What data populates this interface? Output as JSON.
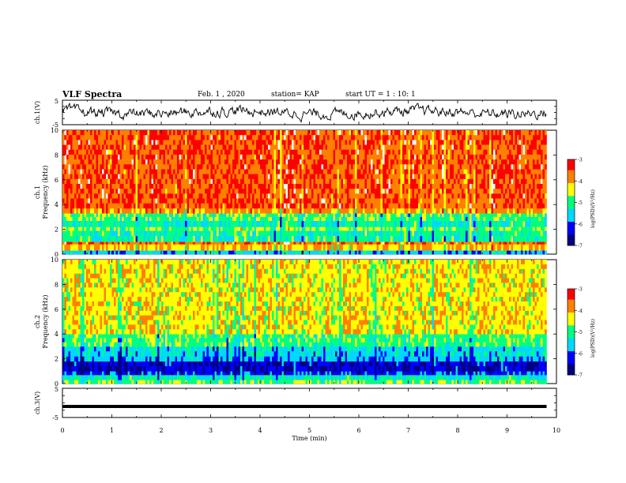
{
  "header": {
    "title": "VLF Spectra",
    "date": "Feb. 1 , 2020",
    "station": "station= KAP",
    "start": "start UT = 1 : 10: 1"
  },
  "colors": {
    "background": "#ffffff",
    "axes": "#000000",
    "trace": "#000000",
    "colormap": [
      "#000080",
      "#0000ff",
      "#00d8ff",
      "#00ff80",
      "#ffff00",
      "#ff8000",
      "#ff0000",
      "#ffffff"
    ]
  },
  "chart_data": [
    {
      "type": "line",
      "panel": "ch.1 waveform",
      "ylabel": "ch.1(V)",
      "ylim": [
        -5,
        5
      ],
      "yticks": [
        "5",
        "-5"
      ],
      "description_series": "noisy voltage trace roughly between -2 and +2 V",
      "xlim": [
        0,
        10
      ]
    },
    {
      "type": "heatmap",
      "panel": "ch.1 spectrogram",
      "ylabel": "ch.1 Frequency (kHz)",
      "ylim": [
        0,
        10
      ],
      "yticks": [
        "0",
        "2",
        "4",
        "6",
        "8",
        "10"
      ],
      "xlim": [
        0,
        9.8
      ],
      "bands": [
        {
          "from": 0,
          "to": 0.3,
          "level": -5.5
        },
        {
          "from": 0.3,
          "to": 0.8,
          "level": -4.0
        },
        {
          "from": 0.8,
          "to": 1.0,
          "level": -3.5
        },
        {
          "from": 1.0,
          "to": 1.9,
          "level": -5.0
        },
        {
          "from": 1.9,
          "to": 2.2,
          "level": -4.6
        },
        {
          "from": 2.2,
          "to": 2.7,
          "level": -5.1
        },
        {
          "from": 2.7,
          "to": 3.3,
          "level": -4.8
        },
        {
          "from": 3.3,
          "to": 3.7,
          "level": -3.8
        },
        {
          "from": 3.7,
          "to": 10.0,
          "level": -3.4
        }
      ],
      "colorbar": {
        "label": "log(PSD)(V²/Hz)",
        "min": -7,
        "max": -3,
        "ticks": [
          "-3",
          "-4",
          "-5",
          "-6",
          "-7"
        ]
      }
    },
    {
      "type": "heatmap",
      "panel": "ch.2 spectrogram",
      "ylabel": "ch.2 Frequency (kHz)",
      "ylim": [
        0,
        10
      ],
      "yticks": [
        "0",
        "2",
        "4",
        "6",
        "8",
        "10"
      ],
      "xlim": [
        0,
        9.8
      ],
      "bands": [
        {
          "from": 0,
          "to": 0.3,
          "level": -4.7
        },
        {
          "from": 0.3,
          "to": 0.7,
          "level": -5.2
        },
        {
          "from": 0.7,
          "to": 1.0,
          "level": -6.0
        },
        {
          "from": 1.0,
          "to": 1.8,
          "level": -6.3
        },
        {
          "from": 1.8,
          "to": 2.2,
          "level": -5.6
        },
        {
          "from": 2.2,
          "to": 3.0,
          "level": -5.4
        },
        {
          "from": 3.0,
          "to": 4.0,
          "level": -4.8
        },
        {
          "from": 4.0,
          "to": 10.0,
          "level": -4.2
        }
      ],
      "colorbar": {
        "label": "log(PSD)(V²/Hz)",
        "min": -7,
        "max": -3,
        "ticks": [
          "-3",
          "-4",
          "-5",
          "-6",
          "-7"
        ]
      }
    },
    {
      "type": "line",
      "panel": "ch.3 waveform",
      "ylabel": "ch.3(V)",
      "ylim": [
        -5,
        5
      ],
      "yticks": [
        "5",
        "-5"
      ],
      "series": [
        {
          "x": [
            0,
            9.8
          ],
          "y": [
            -1.2,
            -1.2
          ]
        }
      ],
      "xlim": [
        0,
        10
      ]
    }
  ],
  "xaxis": {
    "label": "Time (min)",
    "range": [
      0,
      10
    ],
    "ticks": [
      "0",
      "1",
      "2",
      "3",
      "4",
      "5",
      "6",
      "7",
      "8",
      "9",
      "10"
    ]
  }
}
